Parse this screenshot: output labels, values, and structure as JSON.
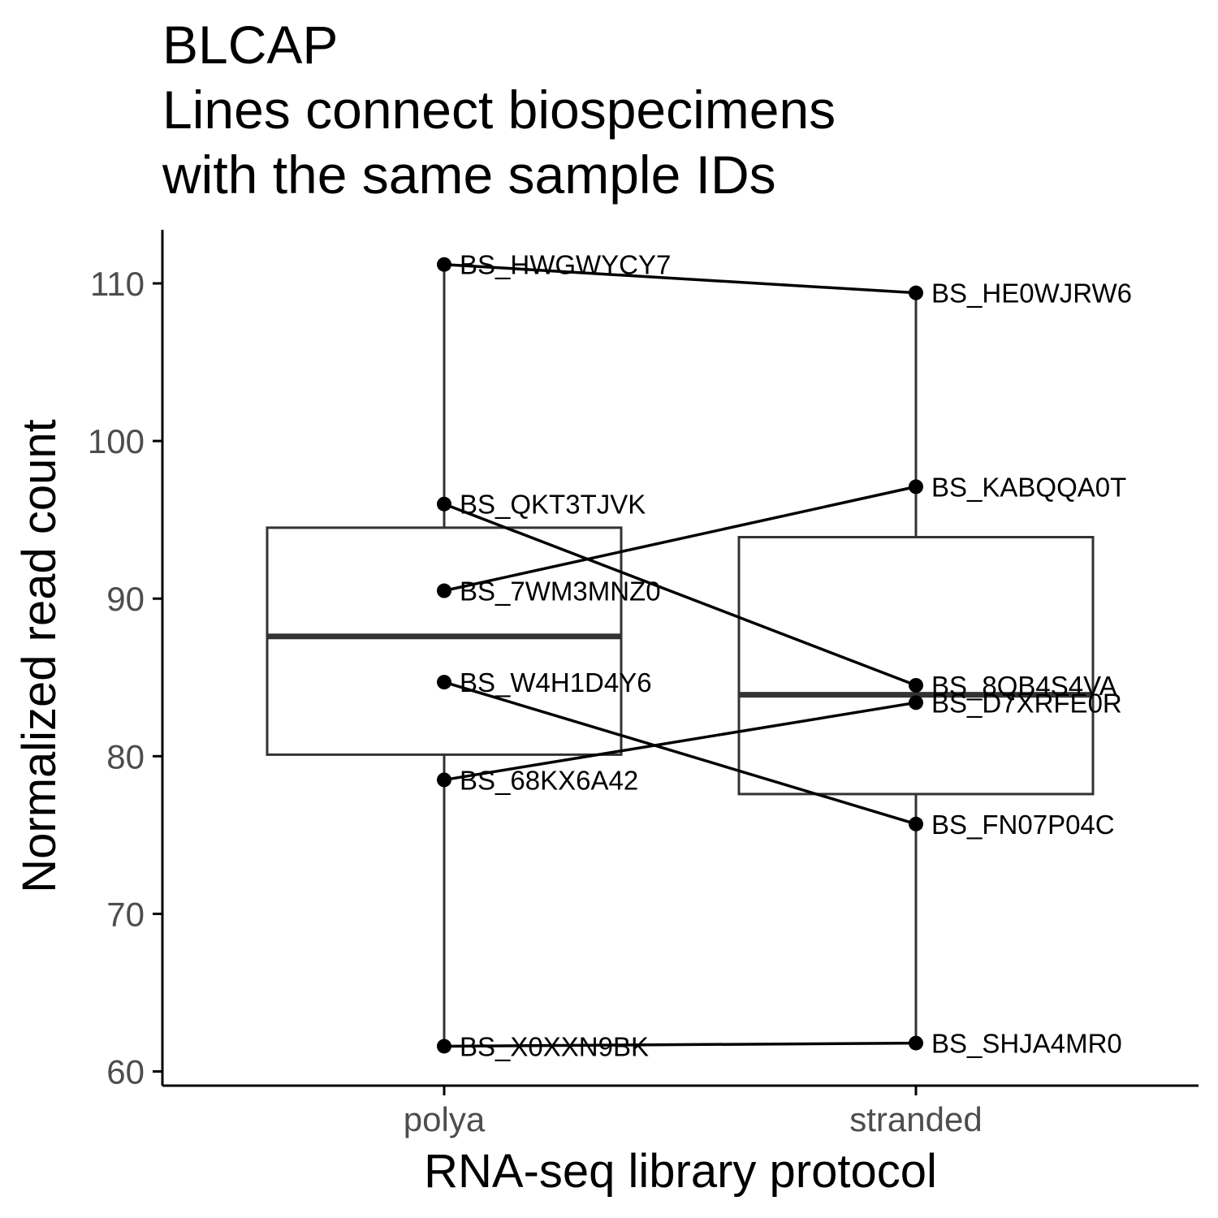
{
  "chart_data": {
    "type": "box",
    "title": "BLCAP",
    "subtitle_lines": [
      "Lines connect biospecimens",
      "with the same sample IDs"
    ],
    "xlabel": "RNA-seq library protocol",
    "ylabel": "Normalized read count",
    "categories": [
      "polya",
      "stranded"
    ],
    "ylim": [
      59.1,
      113.4
    ],
    "yticks": [
      60,
      70,
      80,
      90,
      100,
      110
    ],
    "grid": false,
    "legend": "none",
    "boxes": [
      {
        "category": "polya",
        "min": 61.6,
        "q1": 80.1,
        "median": 87.6,
        "q3": 94.5,
        "max": 111.2
      },
      {
        "category": "stranded",
        "min": 61.8,
        "q1": 77.6,
        "median": 83.9,
        "q3": 93.9,
        "max": 109.4
      }
    ],
    "points": [
      {
        "id": "BS_HWGWYCY7",
        "category": "polya",
        "value": 111.2
      },
      {
        "id": "BS_QKT3TJVK",
        "category": "polya",
        "value": 96.0
      },
      {
        "id": "BS_7WM3MNZ0",
        "category": "polya",
        "value": 90.5
      },
      {
        "id": "BS_W4H1D4Y6",
        "category": "polya",
        "value": 84.7
      },
      {
        "id": "BS_68KX6A42",
        "category": "polya",
        "value": 78.5
      },
      {
        "id": "BS_X0XXN9BK",
        "category": "polya",
        "value": 61.6
      },
      {
        "id": "BS_HE0WJRW6",
        "category": "stranded",
        "value": 109.4
      },
      {
        "id": "BS_KABQQA0T",
        "category": "stranded",
        "value": 97.1
      },
      {
        "id": "BS_8QB4S4VA",
        "category": "stranded",
        "value": 84.5
      },
      {
        "id": "BS_D7XRFE0R",
        "category": "stranded",
        "value": 83.4
      },
      {
        "id": "BS_FN07P04C",
        "category": "stranded",
        "value": 75.7
      },
      {
        "id": "BS_SHJA4MR0",
        "category": "stranded",
        "value": 61.8
      }
    ],
    "pairs": [
      {
        "from": "BS_HWGWYCY7",
        "to": "BS_HE0WJRW6"
      },
      {
        "from": "BS_QKT3TJVK",
        "to": "BS_8QB4S4VA"
      },
      {
        "from": "BS_7WM3MNZ0",
        "to": "BS_KABQQA0T"
      },
      {
        "from": "BS_W4H1D4Y6",
        "to": "BS_FN07P04C"
      },
      {
        "from": "BS_68KX6A42",
        "to": "BS_D7XRFE0R"
      },
      {
        "from": "BS_X0XXN9BK",
        "to": "BS_SHJA4MR0"
      }
    ],
    "colors": {
      "box": "#333333",
      "points": "#000000",
      "lines": "#000000",
      "axis": "#000000",
      "tick_text": "#4d4d4d"
    }
  }
}
